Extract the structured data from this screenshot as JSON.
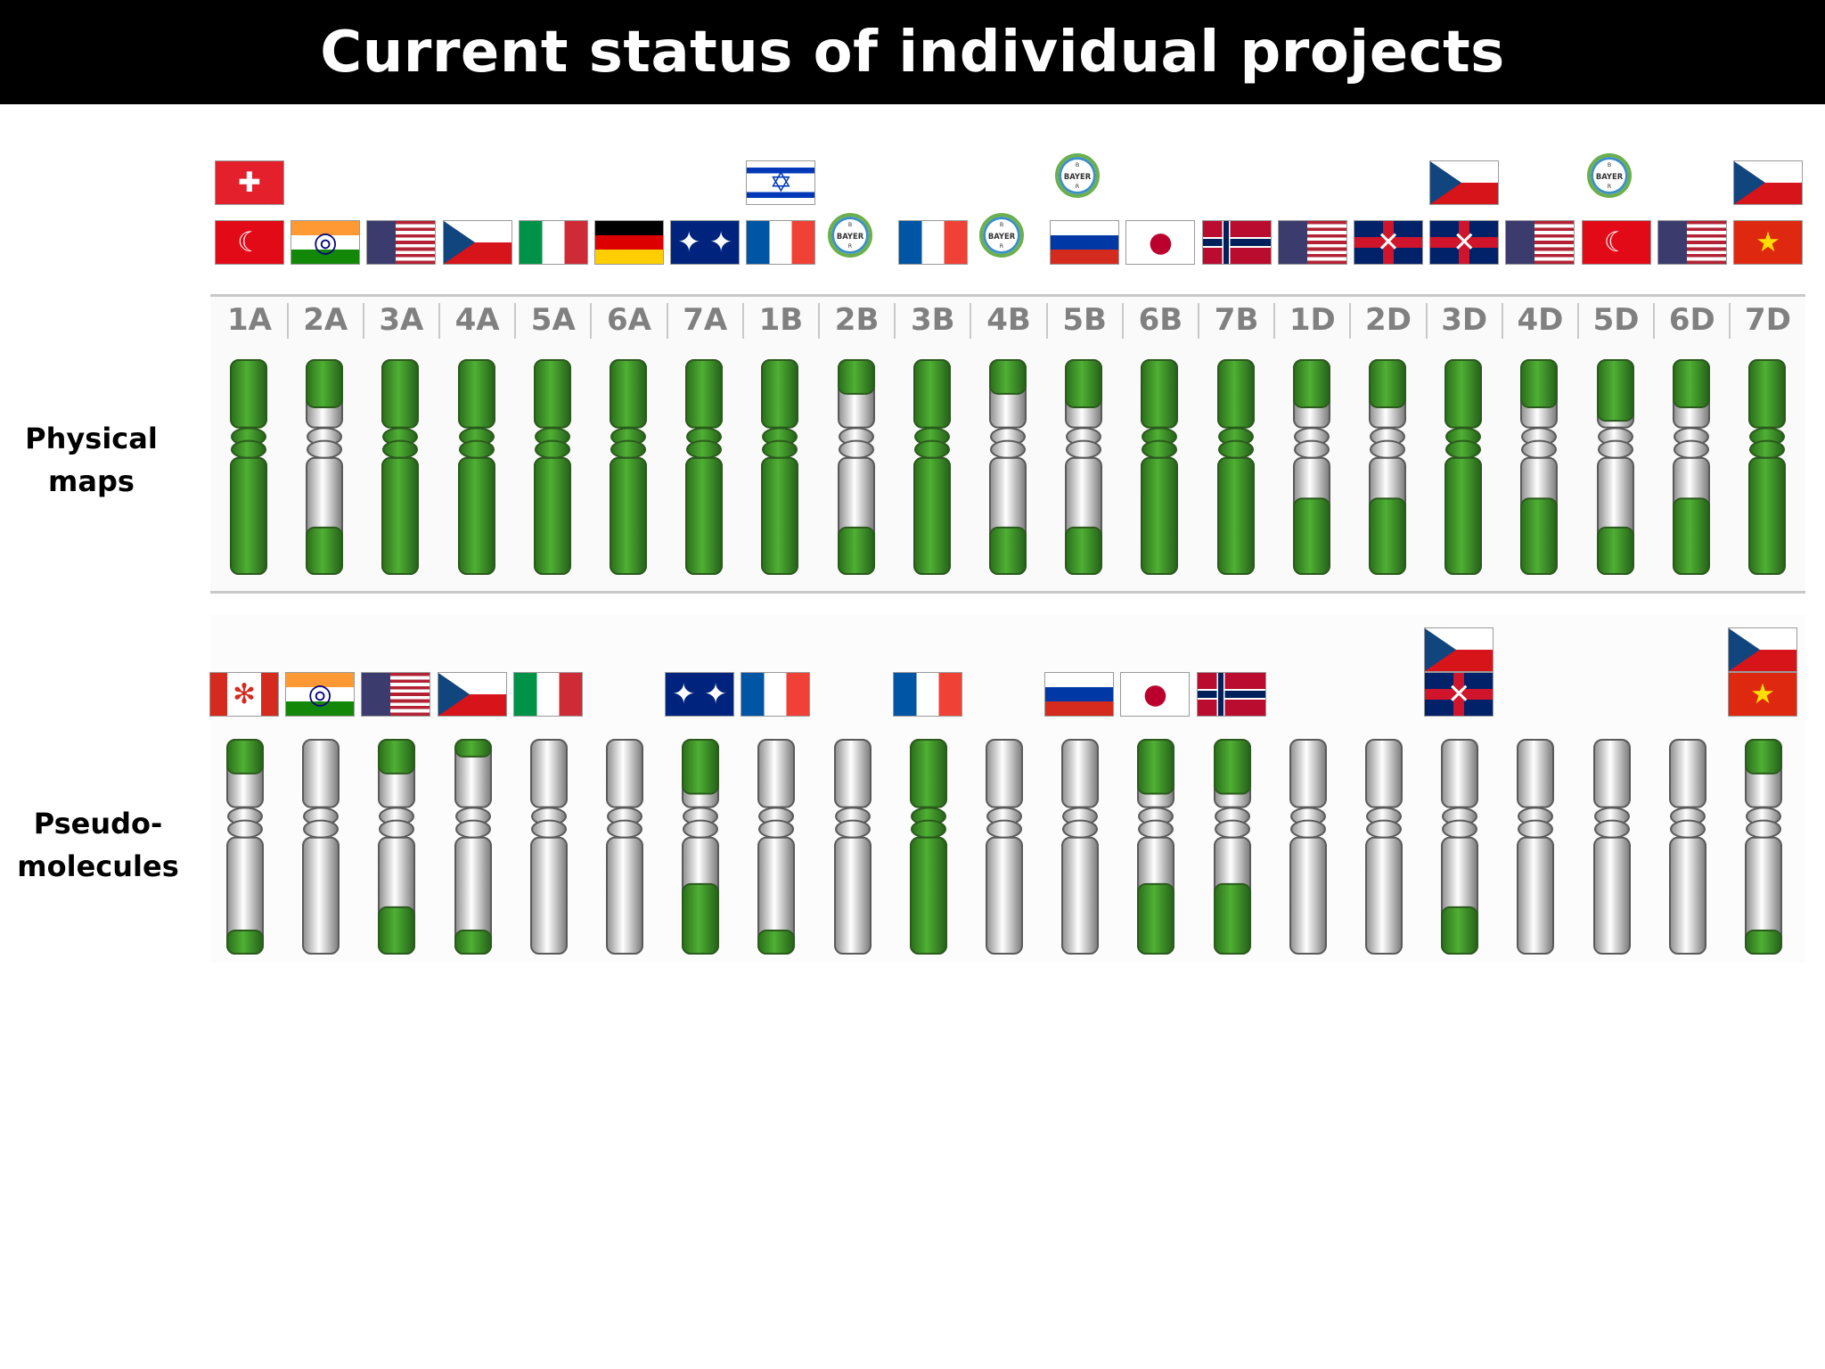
{
  "title": "Current status of individual projects",
  "rows": {
    "physical_label": "Physical\nmaps",
    "pseudo_label": "Pseudo-\nmolecules"
  },
  "bayer_text": "BAYER",
  "colors": {
    "green": "#3f9a2a",
    "white": "#ececec",
    "title_bg": "#000000"
  },
  "chromosomes": [
    "1A",
    "2A",
    "3A",
    "4A",
    "5A",
    "6A",
    "7A",
    "1B",
    "2B",
    "3B",
    "4B",
    "5B",
    "6B",
    "7B",
    "1D",
    "2D",
    "3D",
    "4D",
    "5D",
    "6D",
    "7D"
  ],
  "physical_maps": {
    "flags": [
      [
        "turkey",
        "switzerland"
      ],
      [
        "india"
      ],
      [
        "usa"
      ],
      [
        "czech"
      ],
      [
        "italy"
      ],
      [
        "germany"
      ],
      [
        "australia"
      ],
      [
        "france",
        "israel"
      ],
      [
        "bayer"
      ],
      [
        "france"
      ],
      [
        "bayer"
      ],
      [
        "russia",
        "bayer"
      ],
      [
        "japan"
      ],
      [
        "norway"
      ],
      [
        "usa"
      ],
      [
        "uk"
      ],
      [
        "uk",
        "czech"
      ],
      [
        "usa"
      ],
      [
        "turkey",
        "bayer"
      ],
      [
        "usa"
      ],
      [
        "china",
        "czech"
      ]
    ],
    "coverage": [
      [
        1,
        1
      ],
      [
        0.7,
        0.4
      ],
      [
        1,
        1
      ],
      [
        1,
        1
      ],
      [
        1,
        1
      ],
      [
        1,
        1
      ],
      [
        1,
        1
      ],
      [
        1,
        1
      ],
      [
        0.5,
        0.4
      ],
      [
        1,
        1
      ],
      [
        0.5,
        0.4
      ],
      [
        0.7,
        0.4
      ],
      [
        1,
        1
      ],
      [
        1,
        1
      ],
      [
        0.7,
        0.65
      ],
      [
        0.7,
        0.65
      ],
      [
        1,
        1
      ],
      [
        0.7,
        0.65
      ],
      [
        0.9,
        0.4
      ],
      [
        0.7,
        0.65
      ],
      [
        1,
        1
      ]
    ]
  },
  "pseudomolecules": {
    "flags": [
      [
        "canada"
      ],
      [
        "india"
      ],
      [
        "usa"
      ],
      [
        "czech"
      ],
      [
        "italy"
      ],
      [],
      [
        "australia"
      ],
      [
        "france"
      ],
      [],
      [
        "france"
      ],
      [],
      [
        "russia"
      ],
      [
        "japan"
      ],
      [
        "norway"
      ],
      [],
      [],
      [
        "uk",
        "czech"
      ],
      [],
      [],
      [],
      [
        "china",
        "czech"
      ]
    ],
    "coverage": [
      [
        0.5,
        0.2
      ],
      [
        0,
        0
      ],
      [
        0.5,
        0.4
      ],
      [
        0.25,
        0.2
      ],
      [
        0,
        0
      ],
      [
        0,
        0
      ],
      [
        0.8,
        0.6
      ],
      [
        0,
        0.2
      ],
      [
        0,
        0
      ],
      [
        1,
        1
      ],
      [
        0,
        0
      ],
      [
        0,
        0
      ],
      [
        0.8,
        0.6
      ],
      [
        0.8,
        0.6
      ],
      [
        0,
        0
      ],
      [
        0,
        0
      ],
      [
        0,
        0.4
      ],
      [
        0,
        0
      ],
      [
        0,
        0
      ],
      [
        0,
        0
      ],
      [
        0.5,
        0.2
      ]
    ]
  }
}
